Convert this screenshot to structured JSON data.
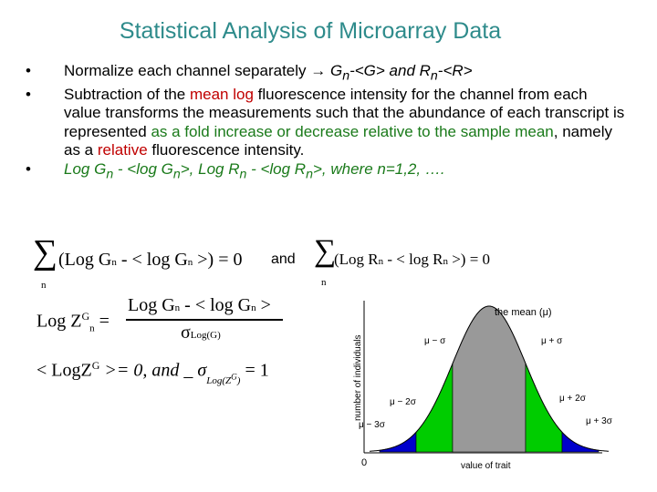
{
  "title": "Statistical Analysis of Microarray Data",
  "bullets": {
    "b1": {
      "dot": "•",
      "text": "Normalize each channel separately ",
      "arrow": "→",
      "g": " G",
      "g_sub": "n",
      "g_rest": "-<G> and R",
      "r_sub": "n",
      "r_rest": "-<R>"
    },
    "b2": {
      "dot": "•",
      "t1": "Subtraction of the ",
      "red1": "mean log",
      "t2": " fluorescence intensity for the channel from each value transforms the measurements such that the abundance of each transcript is represented ",
      "green1": "as a fold increase or decrease relative to the sample mean",
      "t3": ", namely as a ",
      "red2": "relative",
      "t4": " fluorescence intensity."
    },
    "b3": {
      "dot": "•",
      "p1": "Log G",
      "s1": "n",
      "p2": " - <log G",
      "s2": "n",
      "p3": ">, Log R",
      "s3": "n",
      "p4": " - <log R",
      "s4": "n",
      "p5": ">, where n=1,2, …."
    }
  },
  "formulas": {
    "sum_symbol": "∑",
    "eq1_body": "(Log G",
    "eq1_sub1": "n",
    "eq1_mid": " - < log G",
    "eq1_sub2": "n",
    "eq1_end": " >) = 0",
    "eq1_index": "n",
    "and_label": "and",
    "eq2_body": "(Log R",
    "eq2_sub1": "n",
    "eq2_mid": " - < log R",
    "eq2_sub2": "n",
    "eq2_end": " >) = 0",
    "eq2_index": "n",
    "eq3_lhs": "Log Z",
    "eq3_sup": "G",
    "eq3_sub": "n",
    "eq3_eq": " =",
    "eq3_num_a": "Log G",
    "eq3_num_sub1": "n",
    "eq3_num_b": " - < log G",
    "eq3_num_sub2": "n",
    "eq3_num_c": " >",
    "eq3_den": "σ",
    "eq3_den_sub": "Log(G)",
    "eq4_a": "< LogZ",
    "eq4_sup": "G",
    "eq4_b": " >= 0, and _ σ",
    "eq4_sub": "Log(Z",
    "eq4_sub_sup": "G",
    "eq4_sub_end": ")",
    "eq4_c": " = 1"
  },
  "chart": {
    "mean_label": "the mean (μ)",
    "m_minus_s": "μ − σ",
    "m_plus_s": "μ + σ",
    "m_minus_2s": "μ − 2σ",
    "m_plus_2s": "μ + 2σ",
    "m_minus_3s": "μ − 3σ",
    "m_plus_3s": "μ + 3σ",
    "y_axis_label": "number of individuals",
    "x_axis_label": "value of trait",
    "origin_label": "0",
    "colors": {
      "center": "#999999",
      "one_sigma": "#00cc00",
      "two_sigma": "#0000cc",
      "tail": "#ffffff"
    }
  }
}
